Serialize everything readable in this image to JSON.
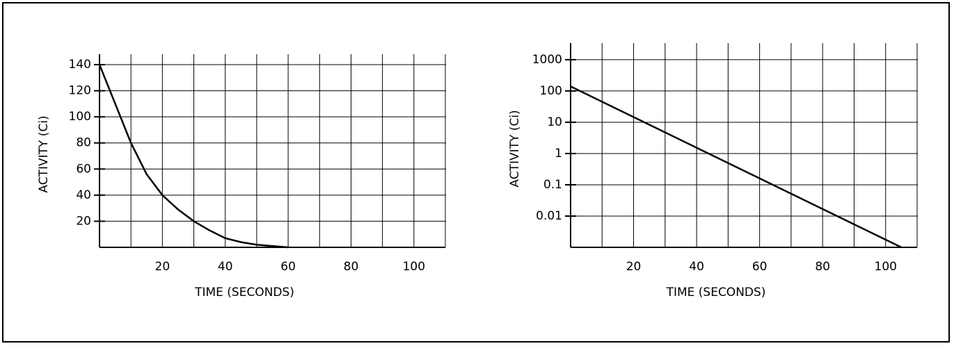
{
  "chart_data": [
    {
      "type": "line",
      "xlabel": "TIME (SECONDS)",
      "ylabel": "ACTIVITY (Ci)",
      "xlim": [
        0,
        110
      ],
      "ylim": [
        0,
        148
      ],
      "grid": true,
      "log_y": false,
      "xticks": [
        {
          "value": 10,
          "label": null
        },
        20,
        {
          "value": 30,
          "label": null
        },
        40,
        {
          "value": 50,
          "label": null
        },
        60,
        {
          "value": 70,
          "label": null
        },
        80,
        {
          "value": 90,
          "label": null
        },
        100,
        {
          "value": 110,
          "label": null
        }
      ],
      "yticks": [
        20,
        40,
        60,
        80,
        100,
        120,
        140
      ],
      "x": [
        0,
        5,
        10,
        15,
        20,
        25,
        30,
        35,
        40,
        45,
        50,
        55,
        60
      ],
      "series": [
        {
          "color": "#000000",
          "values": [
            140,
            110,
            80,
            56,
            40,
            29,
            20,
            13,
            7,
            4,
            2,
            1,
            0
          ]
        }
      ]
    },
    {
      "type": "line",
      "xlabel": "TIME (SECONDS)",
      "ylabel": "ACTIVITY (Ci)",
      "xlim": [
        0,
        110
      ],
      "ylim": [
        0.001,
        3400
      ],
      "grid": true,
      "log_y": true,
      "xticks": [
        {
          "value": 10,
          "label": null
        },
        20,
        {
          "value": 30,
          "label": null
        },
        40,
        {
          "value": 50,
          "label": null
        },
        60,
        {
          "value": 70,
          "label": null
        },
        80,
        {
          "value": 90,
          "label": null
        },
        100,
        {
          "value": 110,
          "label": null
        }
      ],
      "yticks": [
        0.01,
        0.1,
        1,
        10,
        100,
        1000
      ],
      "x": [
        0,
        105
      ],
      "series": [
        {
          "color": "#000000",
          "values": [
            140,
            0.001
          ]
        }
      ]
    }
  ]
}
